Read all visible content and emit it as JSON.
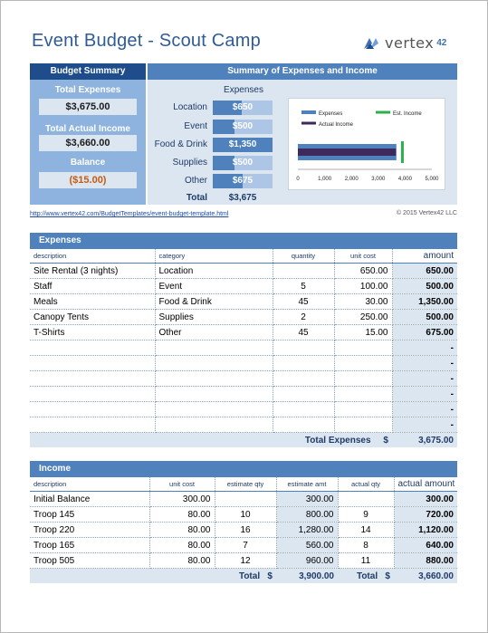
{
  "title": "Event Budget - Scout Camp",
  "logo": {
    "text": "vertex",
    "num": "42"
  },
  "summary": {
    "left_head": "Budget Summary",
    "right_head": "Summary of Expenses and Income",
    "total_expenses_label": "Total Expenses",
    "total_expenses": "$3,675.00",
    "total_actual_income_label": "Total Actual Income",
    "total_actual_income": "$3,660.00",
    "balance_label": "Balance",
    "balance": "($15.00)"
  },
  "expenses_summary": {
    "head": "Expenses",
    "items": [
      {
        "label": "Location",
        "value": "$650",
        "amount": 650
      },
      {
        "label": "Event",
        "value": "$500",
        "amount": 500
      },
      {
        "label": "Food & Drink",
        "value": "$1,350",
        "amount": 1350
      },
      {
        "label": "Supplies",
        "value": "$500",
        "amount": 500
      },
      {
        "label": "Other",
        "value": "$675",
        "amount": 675
      }
    ],
    "total_label": "Total",
    "total_value": "$3,675"
  },
  "chart_data": {
    "type": "bar",
    "orientation": "horizontal",
    "series": [
      {
        "name": "Expenses",
        "values": [
          3675
        ],
        "color": "#4f81bd"
      },
      {
        "name": "Actual Income",
        "values": [
          3660
        ],
        "color": "#3b2a5a"
      }
    ],
    "markers": [
      {
        "name": "Est. Income",
        "value": 3900,
        "color": "#2bb24c"
      }
    ],
    "xlim": [
      0,
      5000
    ],
    "xticks": [
      "0",
      "1,000",
      "2,000",
      "3,000",
      "4,000",
      "5,000"
    ],
    "legend": "top"
  },
  "footer": {
    "link": "http://www.vertex42.com/BudgetTemplates/event-budget-template.html",
    "copyright": "© 2015 Vertex42 LLC"
  },
  "expenses_table": {
    "head": "Expenses",
    "columns": [
      "description",
      "category",
      "quantity",
      "unit cost",
      "amount"
    ],
    "rows": [
      [
        "Site Rental (3 nights)",
        "Location",
        "",
        "650.00",
        "650.00"
      ],
      [
        "Staff",
        "Event",
        "5",
        "100.00",
        "500.00"
      ],
      [
        "Meals",
        "Food & Drink",
        "45",
        "30.00",
        "1,350.00"
      ],
      [
        "Canopy Tents",
        "Supplies",
        "2",
        "250.00",
        "500.00"
      ],
      [
        "T-Shirts",
        "Other",
        "45",
        "15.00",
        "675.00"
      ],
      [
        "",
        "",
        "",
        "",
        "-"
      ],
      [
        "",
        "",
        "",
        "",
        "-"
      ],
      [
        "",
        "",
        "",
        "",
        "-"
      ],
      [
        "",
        "",
        "",
        "",
        "-"
      ],
      [
        "",
        "",
        "",
        "",
        "-"
      ],
      [
        "",
        "",
        "",
        "",
        "-"
      ]
    ],
    "total_label": "Total Expenses",
    "total_currency": "$",
    "total_value": "3,675.00"
  },
  "income_table": {
    "head": "Income",
    "columns": [
      "description",
      "unit cost",
      "estimate qty",
      "estimate amt",
      "actual qty",
      "actual amount"
    ],
    "rows": [
      [
        "Initial Balance",
        "300.00",
        "",
        "300.00",
        "",
        "300.00"
      ],
      [
        "Troop 145",
        "80.00",
        "10",
        "800.00",
        "9",
        "720.00"
      ],
      [
        "Troop 220",
        "80.00",
        "16",
        "1,280.00",
        "14",
        "1,120.00"
      ],
      [
        "Troop 165",
        "80.00",
        "7",
        "560.00",
        "8",
        "640.00"
      ],
      [
        "Troop 505",
        "80.00",
        "12",
        "960.00",
        "11",
        "880.00"
      ]
    ],
    "total_label": "Total",
    "total_currency": "$",
    "est_total": "3,900.00",
    "actual_total_label": "Total",
    "actual_currency": "$",
    "actual_total": "3,660.00"
  }
}
